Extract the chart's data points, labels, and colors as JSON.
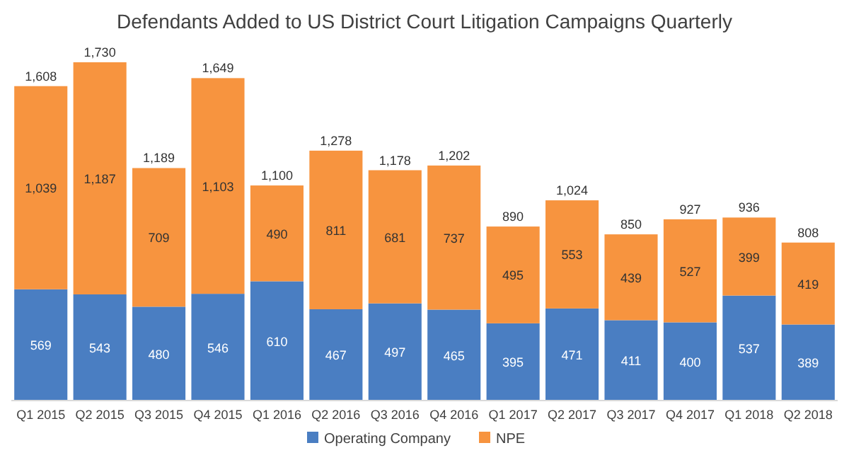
{
  "chart_data": {
    "type": "bar",
    "title": "Defendants Added to US District Court Litigation Campaigns Quarterly",
    "categories": [
      "Q1 2015",
      "Q2 2015",
      "Q3 2015",
      "Q4 2015",
      "Q1 2016",
      "Q2 2016",
      "Q3 2016",
      "Q4 2016",
      "Q1 2017",
      "Q2 2017",
      "Q3 2017",
      "Q4 2017",
      "Q1 2018",
      "Q2 2018"
    ],
    "stacked": true,
    "legend": "bottom",
    "series": [
      {
        "name": "Operating Company",
        "color": "#4a7ec2",
        "values": [
          569,
          543,
          480,
          546,
          610,
          467,
          497,
          465,
          395,
          471,
          411,
          400,
          537,
          389
        ],
        "value_labels": [
          "569",
          "543",
          "480",
          "546",
          "610",
          "467",
          "497",
          "465",
          "395",
          "471",
          "411",
          "400",
          "537",
          "389"
        ]
      },
      {
        "name": "NPE",
        "color": "#f7943f",
        "values": [
          1039,
          1187,
          709,
          1103,
          490,
          811,
          681,
          737,
          495,
          553,
          439,
          527,
          399,
          419
        ],
        "value_labels": [
          "1,039",
          "1,187",
          "709",
          "1,103",
          "490",
          "811",
          "681",
          "737",
          "495",
          "553",
          "439",
          "527",
          "399",
          "419"
        ]
      }
    ],
    "totals": [
      "1,608",
      "1,730",
      "1,189",
      "1,649",
      "1,100",
      "1,278",
      "1,178",
      "1,202",
      "890",
      "1,024",
      "850",
      "927",
      "936",
      "808"
    ]
  }
}
